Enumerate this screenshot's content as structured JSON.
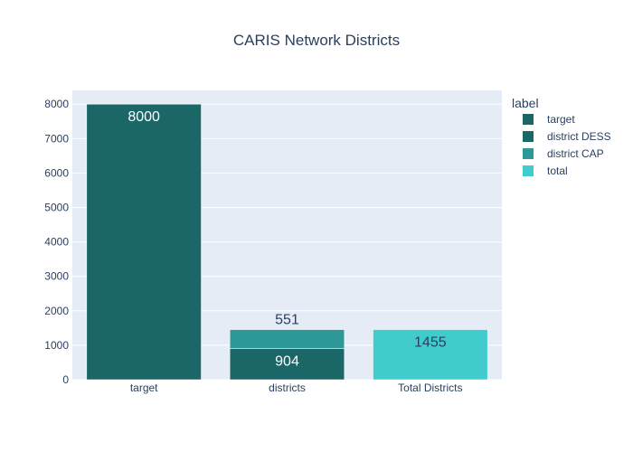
{
  "chart_data": {
    "type": "bar",
    "title": "CARIS Network Districts",
    "xlabel": "",
    "ylabel": "",
    "categories": [
      "target",
      "districts",
      "Total Districts"
    ],
    "barmode": "stack",
    "ylim": [
      0,
      8400
    ],
    "yticks": [
      0,
      1000,
      2000,
      3000,
      4000,
      5000,
      6000,
      7000,
      8000
    ],
    "grid": true,
    "legend_title": "label",
    "legend_position": "right",
    "series": [
      {
        "name": "target",
        "color": "#1b6666",
        "values": [
          8000,
          null,
          null
        ],
        "label_position": "inside-top",
        "label_color": "#ffffff"
      },
      {
        "name": "district DESS",
        "color": "#1b6666",
        "values": [
          null,
          904,
          null
        ],
        "label_position": "inside-top",
        "label_color": "#ffffff"
      },
      {
        "name": "district CAP",
        "color": "#2e9898",
        "values": [
          null,
          551,
          null
        ],
        "label_position": "outside-top",
        "label_color": "#2a3f5f"
      },
      {
        "name": "total",
        "color": "#40cccc",
        "values": [
          null,
          null,
          1455
        ],
        "label_position": "inside-top",
        "label_color": "#2a3f5f"
      }
    ],
    "colors": {
      "plot_background": "#e5ecf6",
      "grid": "#ffffff",
      "text": "#2a3f5f"
    }
  }
}
